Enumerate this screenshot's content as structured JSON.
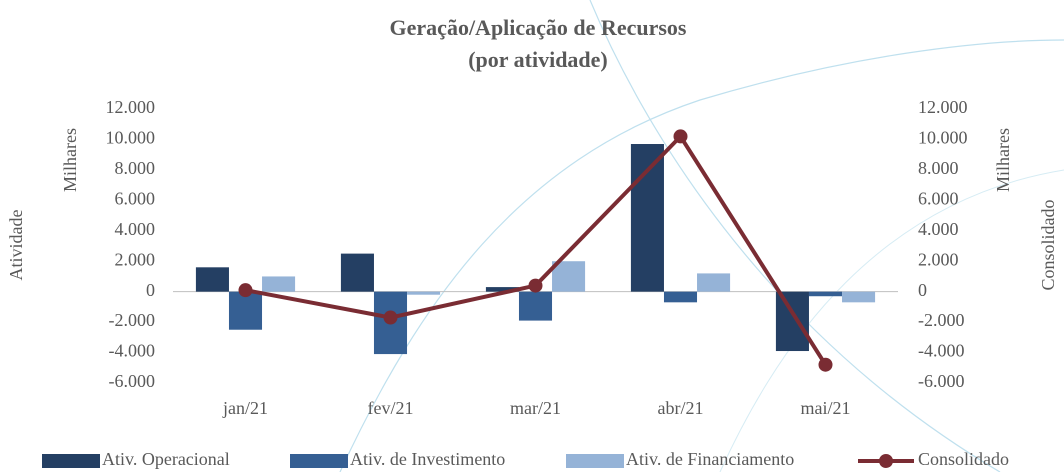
{
  "chart_data": {
    "type": "bar_line",
    "title": "Geração/Aplicação de Recursos",
    "subtitle": "(por atividade)",
    "ylabel_outer": "Atividade",
    "ylabel": "Milhares",
    "y2label": "Milhares",
    "y2label_outer": "Consolidado",
    "categories": [
      "jan/21",
      "fev/21",
      "mar/21",
      "abr/21",
      "mai/21"
    ],
    "series": [
      {
        "name": "Ativ. Operacional",
        "type": "bar",
        "color": "#243f63",
        "values": [
          1600,
          2500,
          300,
          9700,
          -3900
        ]
      },
      {
        "name": "Ativ. de Investimento",
        "type": "bar",
        "color": "#355f93",
        "values": [
          -2500,
          -4100,
          -1900,
          -700,
          -300
        ]
      },
      {
        "name": "Ativ. de Financiamento",
        "type": "bar",
        "color": "#95b3d7",
        "values": [
          1000,
          -200,
          2000,
          1200,
          -700
        ]
      },
      {
        "name": "Consolidado",
        "type": "line",
        "axis": "y2",
        "color": "#7a2c33",
        "values": [
          100,
          -1700,
          400,
          10200,
          -4800
        ]
      }
    ],
    "ylim": [
      -6000,
      12000
    ],
    "yticks": [
      {
        "value": 12000,
        "label": "12.000"
      },
      {
        "value": 10000,
        "label": "10.000"
      },
      {
        "value": 8000,
        "label": "8.000"
      },
      {
        "value": 6000,
        "label": "6.000"
      },
      {
        "value": 4000,
        "label": "4.000"
      },
      {
        "value": 2000,
        "label": "2.000"
      },
      0,
      {
        "value": -2000,
        "label": "-2.000"
      },
      {
        "value": -4000,
        "label": "-4.000"
      },
      {
        "value": -6000,
        "label": "-6.000"
      }
    ],
    "y2lim": [
      -6000,
      12000
    ],
    "y2ticks": [
      {
        "value": 12000,
        "label": "12.000"
      },
      {
        "value": 10000,
        "label": "10.000"
      },
      {
        "value": 8000,
        "label": "8.000"
      },
      {
        "value": 6000,
        "label": "6.000"
      },
      {
        "value": 4000,
        "label": "4.000"
      },
      {
        "value": 2000,
        "label": "2.000"
      },
      0,
      {
        "value": -2000,
        "label": "-2.000"
      },
      {
        "value": -4000,
        "label": "-4.000"
      },
      {
        "value": -6000,
        "label": "-6.000"
      }
    ],
    "legend": "bottom"
  }
}
